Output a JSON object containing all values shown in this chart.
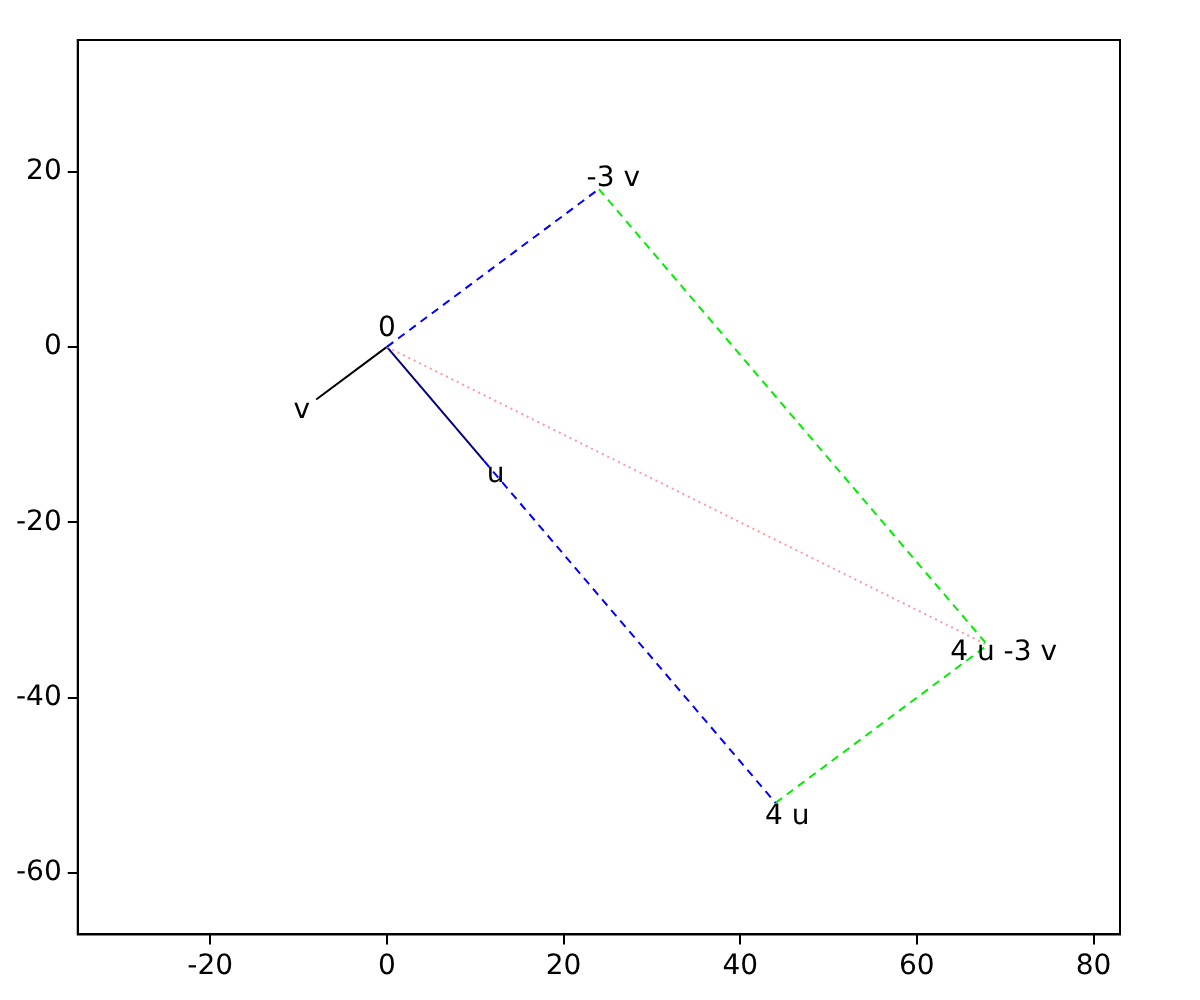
{
  "chart_data": {
    "type": "line",
    "xlim": [
      -35,
      83
    ],
    "ylim": [
      -67,
      35
    ],
    "xticks": [
      -20,
      0,
      20,
      40,
      60,
      80
    ],
    "yticks": [
      -60,
      -40,
      -20,
      0,
      20
    ],
    "grid": false,
    "legend": false,
    "marker": "none",
    "series": [
      {
        "x": [
          0,
          24
        ],
        "values": [
          0,
          18
        ],
        "color": "#0000ff",
        "line_style": "dashed"
      },
      {
        "x": [
          11,
          44
        ],
        "values": [
          -13,
          -52
        ],
        "color": "#0000ff",
        "line_style": "dashed"
      },
      {
        "x": [
          24,
          68
        ],
        "values": [
          18,
          -34
        ],
        "color": "#00ee00",
        "line_style": "dashed"
      },
      {
        "x": [
          44,
          68
        ],
        "values": [
          -52,
          -34
        ],
        "color": "#00ee00",
        "line_style": "dashed"
      },
      {
        "x": [
          0,
          68
        ],
        "values": [
          0,
          -34
        ],
        "color": "#ff9999",
        "line_style": "dotted"
      },
      {
        "x": [
          0,
          -8
        ],
        "values": [
          0,
          -6
        ],
        "color": "#000000",
        "line_style": "solid"
      },
      {
        "x": [
          0,
          11
        ],
        "values": [
          0,
          -13
        ],
        "color": "#000080",
        "line_style": "solid"
      }
    ],
    "annotations": [
      {
        "text": "0",
        "x": 0,
        "y": 0
      },
      {
        "text": "-3 v",
        "x": 24,
        "y": 18
      },
      {
        "text": "4 u",
        "x": 44,
        "y": -52
      },
      {
        "text": "4 u -3 v",
        "x": 68,
        "y": -34
      },
      {
        "text": "u",
        "x": 11,
        "y": -13
      },
      {
        "text": "v",
        "x": -8,
        "y": -6
      }
    ]
  }
}
